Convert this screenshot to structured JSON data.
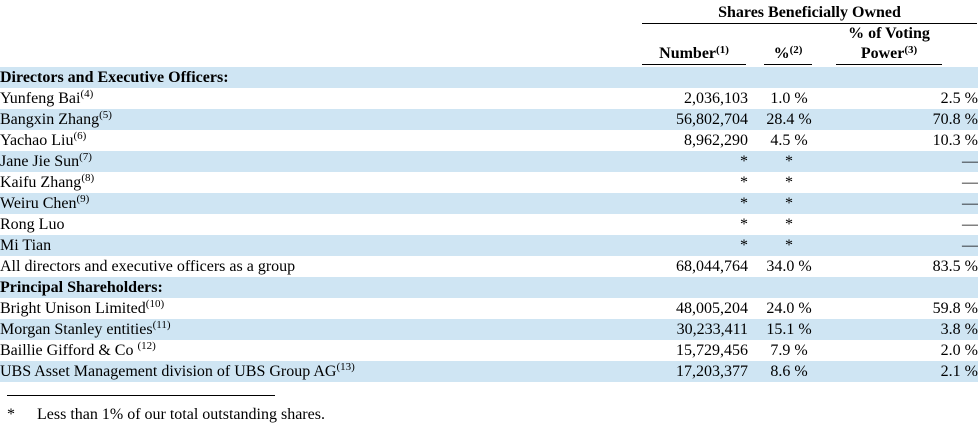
{
  "header": {
    "group_title": "Shares Beneficially Owned",
    "col_number": "Number",
    "col_number_note": "(1)",
    "col_percent": "%",
    "col_percent_note": "(2)",
    "col_voting_line1": "% of Voting",
    "col_voting_line2": "Power",
    "col_voting_note": "(3)"
  },
  "rows": [
    {
      "kind": "section",
      "name": "Directors and Executive Officers:",
      "note": "",
      "number": "",
      "percent": "",
      "voting": ""
    },
    {
      "kind": "row",
      "name": "Yunfeng Bai",
      "note": "(4)",
      "number": "2,036,103",
      "percent": "1.0 %",
      "voting": "2.5 %"
    },
    {
      "kind": "row",
      "name": "Bangxin Zhang",
      "note": "(5)",
      "number": "56,802,704",
      "percent": "28.4 %",
      "voting": "70.8 %"
    },
    {
      "kind": "row",
      "name": "Yachao Liu",
      "note": "(6)",
      "number": "8,962,290",
      "percent": "4.5 %",
      "voting": "10.3 %"
    },
    {
      "kind": "row",
      "name": "Jane Jie Sun",
      "note": "(7)",
      "number": "*",
      "percent": "*",
      "voting": "—"
    },
    {
      "kind": "row",
      "name": "Kaifu Zhang",
      "note": "(8)",
      "number": "*",
      "percent": "*",
      "voting": "—"
    },
    {
      "kind": "row",
      "name": "Weiru Chen",
      "note": "(9)",
      "number": "*",
      "percent": "*",
      "voting": "—"
    },
    {
      "kind": "row",
      "name": "Rong Luo",
      "note": "",
      "number": "*",
      "percent": "*",
      "voting": "—"
    },
    {
      "kind": "row",
      "name": "Mi Tian",
      "note": "",
      "number": "*",
      "percent": "*",
      "voting": "—"
    },
    {
      "kind": "row",
      "name": "All directors and executive officers as a group",
      "note": "",
      "number": "68,044,764",
      "percent": "34.0 %",
      "voting": "83.5 %"
    },
    {
      "kind": "section",
      "name": "Principal Shareholders:",
      "note": "",
      "number": "",
      "percent": "",
      "voting": ""
    },
    {
      "kind": "row",
      "name": "Bright Unison Limited",
      "note": "(10)",
      "number": "48,005,204",
      "percent": "24.0 %",
      "voting": "59.8 %"
    },
    {
      "kind": "row",
      "name": "Morgan Stanley entities",
      "note": "(11)",
      "number": "30,233,411",
      "percent": "15.1 %",
      "voting": "3.8 %"
    },
    {
      "kind": "row",
      "name": "Baillie Gifford & Co ",
      "note": "(12)",
      "number": "15,729,456",
      "percent": "7.9 %",
      "voting": "2.0 %"
    },
    {
      "kind": "row",
      "name": "UBS Asset Management division of UBS Group AG",
      "note": "(13)",
      "number": "17,203,377",
      "percent": "8.6 %",
      "voting": "2.1 %"
    }
  ],
  "footnote": {
    "marker": "*",
    "text": "Less than 1% of our total outstanding shares."
  }
}
